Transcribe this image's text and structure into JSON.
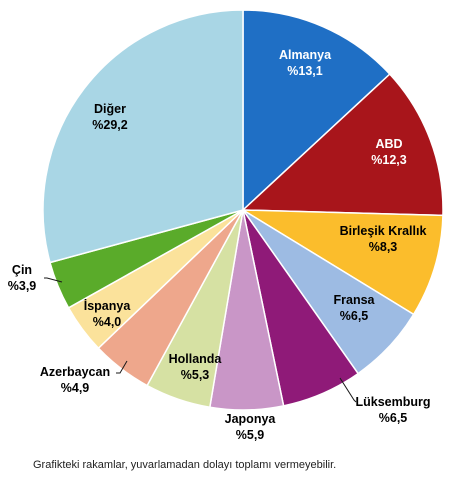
{
  "chart_data": {
    "type": "pie",
    "title": "",
    "start": "top",
    "direction": "clockwise",
    "slices": [
      {
        "name": "Almanya",
        "value_label": "%13,1",
        "value": 13.1,
        "color": "#1f6fc5",
        "text_color": "#ffffff"
      },
      {
        "name": "ABD",
        "value_label": "%12,3",
        "value": 12.3,
        "color": "#a8151b",
        "text_color": "#ffffff"
      },
      {
        "name": "Birleşik Krallık",
        "value_label": "%8,3",
        "value": 8.3,
        "color": "#fbbd2c",
        "text_color": "#000000"
      },
      {
        "name": "Fransa",
        "value_label": "%6,5",
        "value": 6.5,
        "color": "#9dbbe3",
        "text_color": "#000000"
      },
      {
        "name": "Lüksemburg",
        "value_label": "%6,5",
        "value": 6.5,
        "color": "#8f1a78",
        "text_color": "#000000"
      },
      {
        "name": "Japonya",
        "value_label": "%5,9",
        "value": 5.9,
        "color": "#c996c7",
        "text_color": "#000000"
      },
      {
        "name": "Hollanda",
        "value_label": "%5,3",
        "value": 5.3,
        "color": "#d6e1a3",
        "text_color": "#000000"
      },
      {
        "name": "Azerbaycan",
        "value_label": "%4,9",
        "value": 4.9,
        "color": "#eea78c",
        "text_color": "#000000"
      },
      {
        "name": "İspanya",
        "value_label": "%4,0",
        "value": 4.0,
        "color": "#fbe29b",
        "text_color": "#000000"
      },
      {
        "name": "Çin",
        "value_label": "%3,9",
        "value": 3.9,
        "color": "#5aab2a",
        "text_color": "#000000"
      },
      {
        "name": "Diğer",
        "value_label": "%29,2",
        "value": 29.2,
        "color": "#a9d6e5",
        "text_color": "#000000"
      }
    ],
    "footnote": "Grafikteki rakamlar, yuvarlamadan dolayı toplamı vermeyebilir."
  }
}
